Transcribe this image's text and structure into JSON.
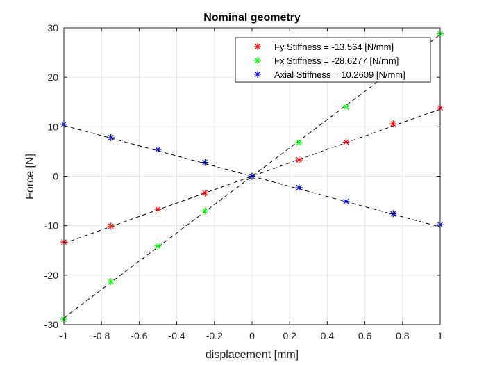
{
  "chart_data": {
    "type": "scatter",
    "title": "Nominal geometry",
    "xlabel": "displacement [mm]",
    "ylabel": "Force [N]",
    "xlim": [
      -1,
      1
    ],
    "ylim": [
      -30,
      30
    ],
    "xticks": [
      -1,
      -0.8,
      -0.6,
      -0.4,
      -0.2,
      0,
      0.2,
      0.4,
      0.6,
      0.8,
      1
    ],
    "yticks": [
      -30,
      -20,
      -10,
      0,
      10,
      20,
      30
    ],
    "grid": true,
    "legend_position": "top-right",
    "series": [
      {
        "name": "Fy Stiffness = -13.564 [N/mm]",
        "color": "#ff0000",
        "marker": "asterisk",
        "x": [
          -1,
          -0.75,
          -0.5,
          -0.25,
          0,
          0.25,
          0.5,
          0.75,
          1
        ],
        "y": [
          -13.3,
          -10.1,
          -6.7,
          -3.4,
          0,
          3.3,
          6.9,
          10.6,
          13.8
        ]
      },
      {
        "name": "Fx Stiffness = -28.6277 [N/mm]",
        "color": "#00ff00",
        "marker": "asterisk",
        "x": [
          -1,
          -0.75,
          -0.5,
          -0.25,
          0,
          0.25,
          0.5,
          0.75,
          1
        ],
        "y": [
          -28.9,
          -21.3,
          -14.1,
          -7.0,
          0,
          6.8,
          14.0,
          21.0,
          28.8
        ]
      },
      {
        "name": "Axial Stiffness = 10.2609 [N/mm]",
        "color": "#0000cc",
        "marker": "asterisk",
        "x": [
          -1,
          -0.75,
          -0.5,
          -0.25,
          0,
          0.25,
          0.5,
          0.75,
          1
        ],
        "y": [
          10.5,
          7.8,
          5.4,
          2.8,
          0,
          -2.3,
          -5.1,
          -7.6,
          -9.8
        ]
      }
    ],
    "fit_lines": [
      {
        "series": "Fy",
        "slope": 13.564,
        "intercept": 0
      },
      {
        "series": "Fx",
        "slope": 28.6277,
        "intercept": 0
      },
      {
        "series": "Axial",
        "slope": -10.2609,
        "intercept": 0
      }
    ]
  }
}
